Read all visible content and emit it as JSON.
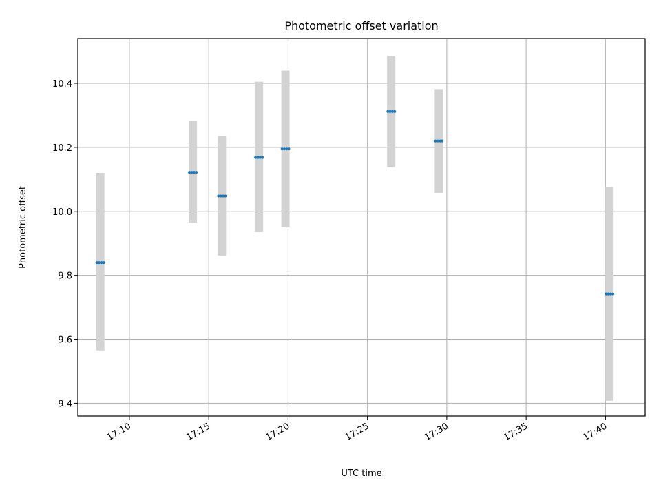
{
  "chart_data": {
    "type": "scatter",
    "title": "Photometric offset variation",
    "xlabel": "UTC time",
    "ylabel": "Photometric offset",
    "xlim": [
      "17:06:45",
      "17:42:30"
    ],
    "ylim": [
      9.36,
      10.54
    ],
    "grid": true,
    "x_ticks": [
      "17:10",
      "17:15",
      "17:20",
      "17:25",
      "17:30",
      "17:35",
      "17:40"
    ],
    "y_ticks": [
      "9.4",
      "9.6",
      "9.8",
      "10.0",
      "10.2",
      "10.4"
    ],
    "x_tick_values": [
      "17:10:00",
      "17:15:00",
      "17:20:00",
      "17:25:00",
      "17:30:00",
      "17:35:00",
      "17:40:00"
    ],
    "y_tick_values": [
      9.4,
      9.6,
      9.8,
      10.0,
      10.2,
      10.4
    ],
    "marker_color": "#1f77b4",
    "errorbar_color": "#d3d3d3",
    "points": [
      {
        "time": "17:08:10",
        "value": 9.84,
        "err_low": 9.565,
        "err_high": 10.12
      },
      {
        "time": "17:14:00",
        "value": 10.122,
        "err_low": 9.965,
        "err_high": 10.282
      },
      {
        "time": "17:15:50",
        "value": 10.048,
        "err_low": 9.862,
        "err_high": 10.235
      },
      {
        "time": "17:18:10",
        "value": 10.168,
        "err_low": 9.935,
        "err_high": 10.405
      },
      {
        "time": "17:19:50",
        "value": 10.195,
        "err_low": 9.95,
        "err_high": 10.44
      },
      {
        "time": "17:26:30",
        "value": 10.312,
        "err_low": 10.138,
        "err_high": 10.485
      },
      {
        "time": "17:29:30",
        "value": 10.22,
        "err_low": 10.058,
        "err_high": 10.382
      },
      {
        "time": "17:40:15",
        "value": 9.742,
        "err_low": 9.408,
        "err_high": 10.076
      }
    ]
  }
}
